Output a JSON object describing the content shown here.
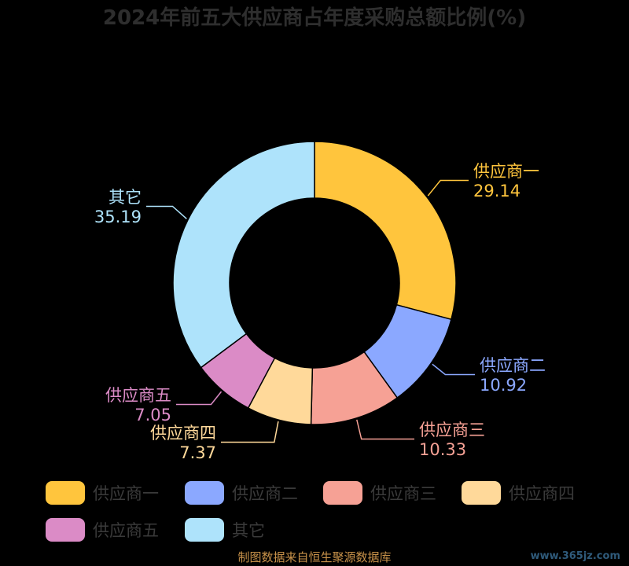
{
  "chart_data": {
    "type": "pie",
    "title": "2024年前五大供应商占年度采购总额比例(%)",
    "donut": true,
    "legend_position": "bottom",
    "slices": [
      {
        "label": "供应商一",
        "value": 29.14,
        "value_text": "29.14",
        "color": "#FFC53D"
      },
      {
        "label": "供应商二",
        "value": 10.92,
        "value_text": "10.92",
        "color": "#8BA8FF"
      },
      {
        "label": "供应商三",
        "value": 10.33,
        "value_text": "10.33",
        "color": "#F6A195"
      },
      {
        "label": "供应商四",
        "value": 7.37,
        "value_text": "7.37",
        "color": "#FFD99A"
      },
      {
        "label": "供应商五",
        "value": 7.05,
        "value_text": "7.05",
        "color": "#DB8BC6"
      },
      {
        "label": "其它",
        "value": 35.19,
        "value_text": "35.19",
        "color": "#AEE3FB"
      }
    ]
  },
  "source": "制图数据来自恒生聚源数据库",
  "watermark": "www.365jz.com"
}
